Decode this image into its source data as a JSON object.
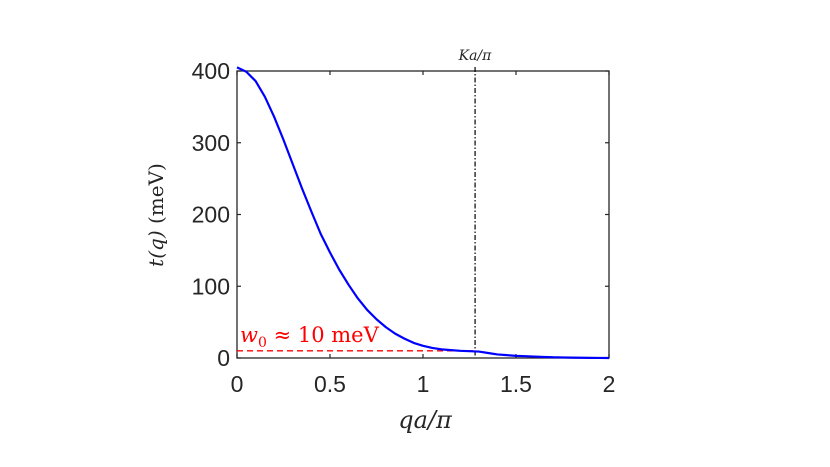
{
  "chart_data": {
    "type": "line",
    "xlabel": "qa/π",
    "ylabel": "t(q) (meV)",
    "xlim": [
      0,
      2
    ],
    "ylim": [
      0,
      400
    ],
    "xticks": [
      "0",
      "0.5",
      "1",
      "1.5",
      "2"
    ],
    "yticks": [
      "0",
      "100",
      "200",
      "300",
      "400"
    ],
    "grid": false,
    "series": [
      {
        "color": "#0000ff",
        "x": [
          0,
          0.05,
          0.1,
          0.15,
          0.2,
          0.25,
          0.3,
          0.35,
          0.4,
          0.45,
          0.5,
          0.55,
          0.6,
          0.65,
          0.7,
          0.75,
          0.8,
          0.85,
          0.9,
          0.95,
          1.0,
          1.05,
          1.1,
          1.15,
          1.2,
          1.25,
          1.3,
          1.35,
          1.4,
          1.45,
          1.5,
          1.55,
          1.6,
          1.65,
          1.7,
          1.75,
          1.8,
          1.85,
          1.9,
          1.95,
          2.0
        ],
        "y": [
          405,
          399,
          386,
          364,
          336,
          304,
          270,
          236,
          204,
          173,
          147,
          123,
          102,
          83,
          67,
          54,
          43,
          34,
          27,
          21,
          17,
          14,
          12,
          11,
          10,
          9.5,
          9,
          7,
          5,
          4,
          3,
          2.5,
          2,
          1.5,
          1,
          0.8,
          0.5,
          0.3,
          0.2,
          0.1,
          0
        ]
      }
    ],
    "reference_lines": [
      {
        "kind": "vertical",
        "x": 1.28,
        "label": "Ka/π",
        "color": "#000000",
        "style": "dash-dot"
      },
      {
        "kind": "horizontal",
        "y": 10,
        "x_range": [
          0,
          1.28
        ],
        "label": "w0 ≈ 10 meV",
        "color": "#ff0000",
        "style": "dashed"
      }
    ]
  }
}
